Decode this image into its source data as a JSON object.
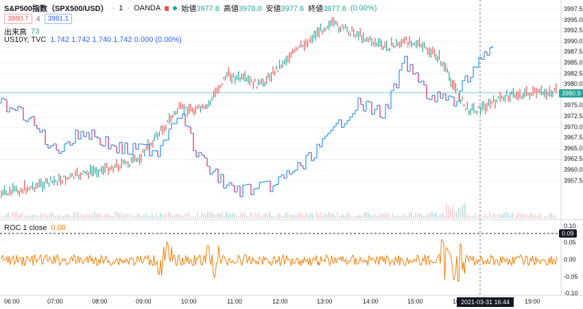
{
  "legend": {
    "symbol": "S&P500指数（SPX500/USD）",
    "interval": "1",
    "source": "OANDA",
    "ohlc": [
      {
        "label": "始値",
        "value": "3977.8"
      },
      {
        "label": "高値",
        "value": "3978.0"
      },
      {
        "label": "安値",
        "value": "3977.6"
      },
      {
        "label": "終値",
        "value": "3977.8"
      }
    ],
    "change": "(0.00%)",
    "sell_price": "3980.7",
    "spread": "4",
    "buy_price": "3981.1",
    "volume_label": "出来高",
    "volume_value": "73",
    "compare_label": "US10Y, TVC",
    "compare_values": "1.742  1.742  1.740  1.742  0.000 (0.00%)",
    "roc_label": "ROC 1 close",
    "roc_value": "0.00"
  },
  "price_axis": [
    "3997.5",
    "3995.0",
    "3992.5",
    "3990.0",
    "3987.5",
    "3985.0",
    "3982.5",
    "3980.0",
    "3977.5",
    "3975.0",
    "3972.5",
    "3970.0",
    "3967.5",
    "3965.0",
    "3962.5",
    "3960.0",
    "3957.5"
  ],
  "price_badge": "3980.9",
  "roc_axis": [
    "0.10",
    "0.05",
    "0.00",
    "-0.05",
    "-0.10"
  ],
  "roc_badge": "0.09",
  "time_axis": [
    "06:00",
    "07:00",
    "08:00",
    "09:00",
    "10:00",
    "11:00",
    "12:00",
    "13:00",
    "14:00",
    "15:00",
    "16",
    "19:00"
  ],
  "crosshair_time": "2021-03-31  16:44",
  "colors": {
    "up": "#26a69a",
    "down": "#ef5350",
    "compare_up": "#2196f3",
    "compare_down": "#e91e63",
    "roc": "#f57c00",
    "grid": "#f0f3fa"
  },
  "icons": {
    "status": "dot-icon",
    "flag": "flag-icon"
  }
}
